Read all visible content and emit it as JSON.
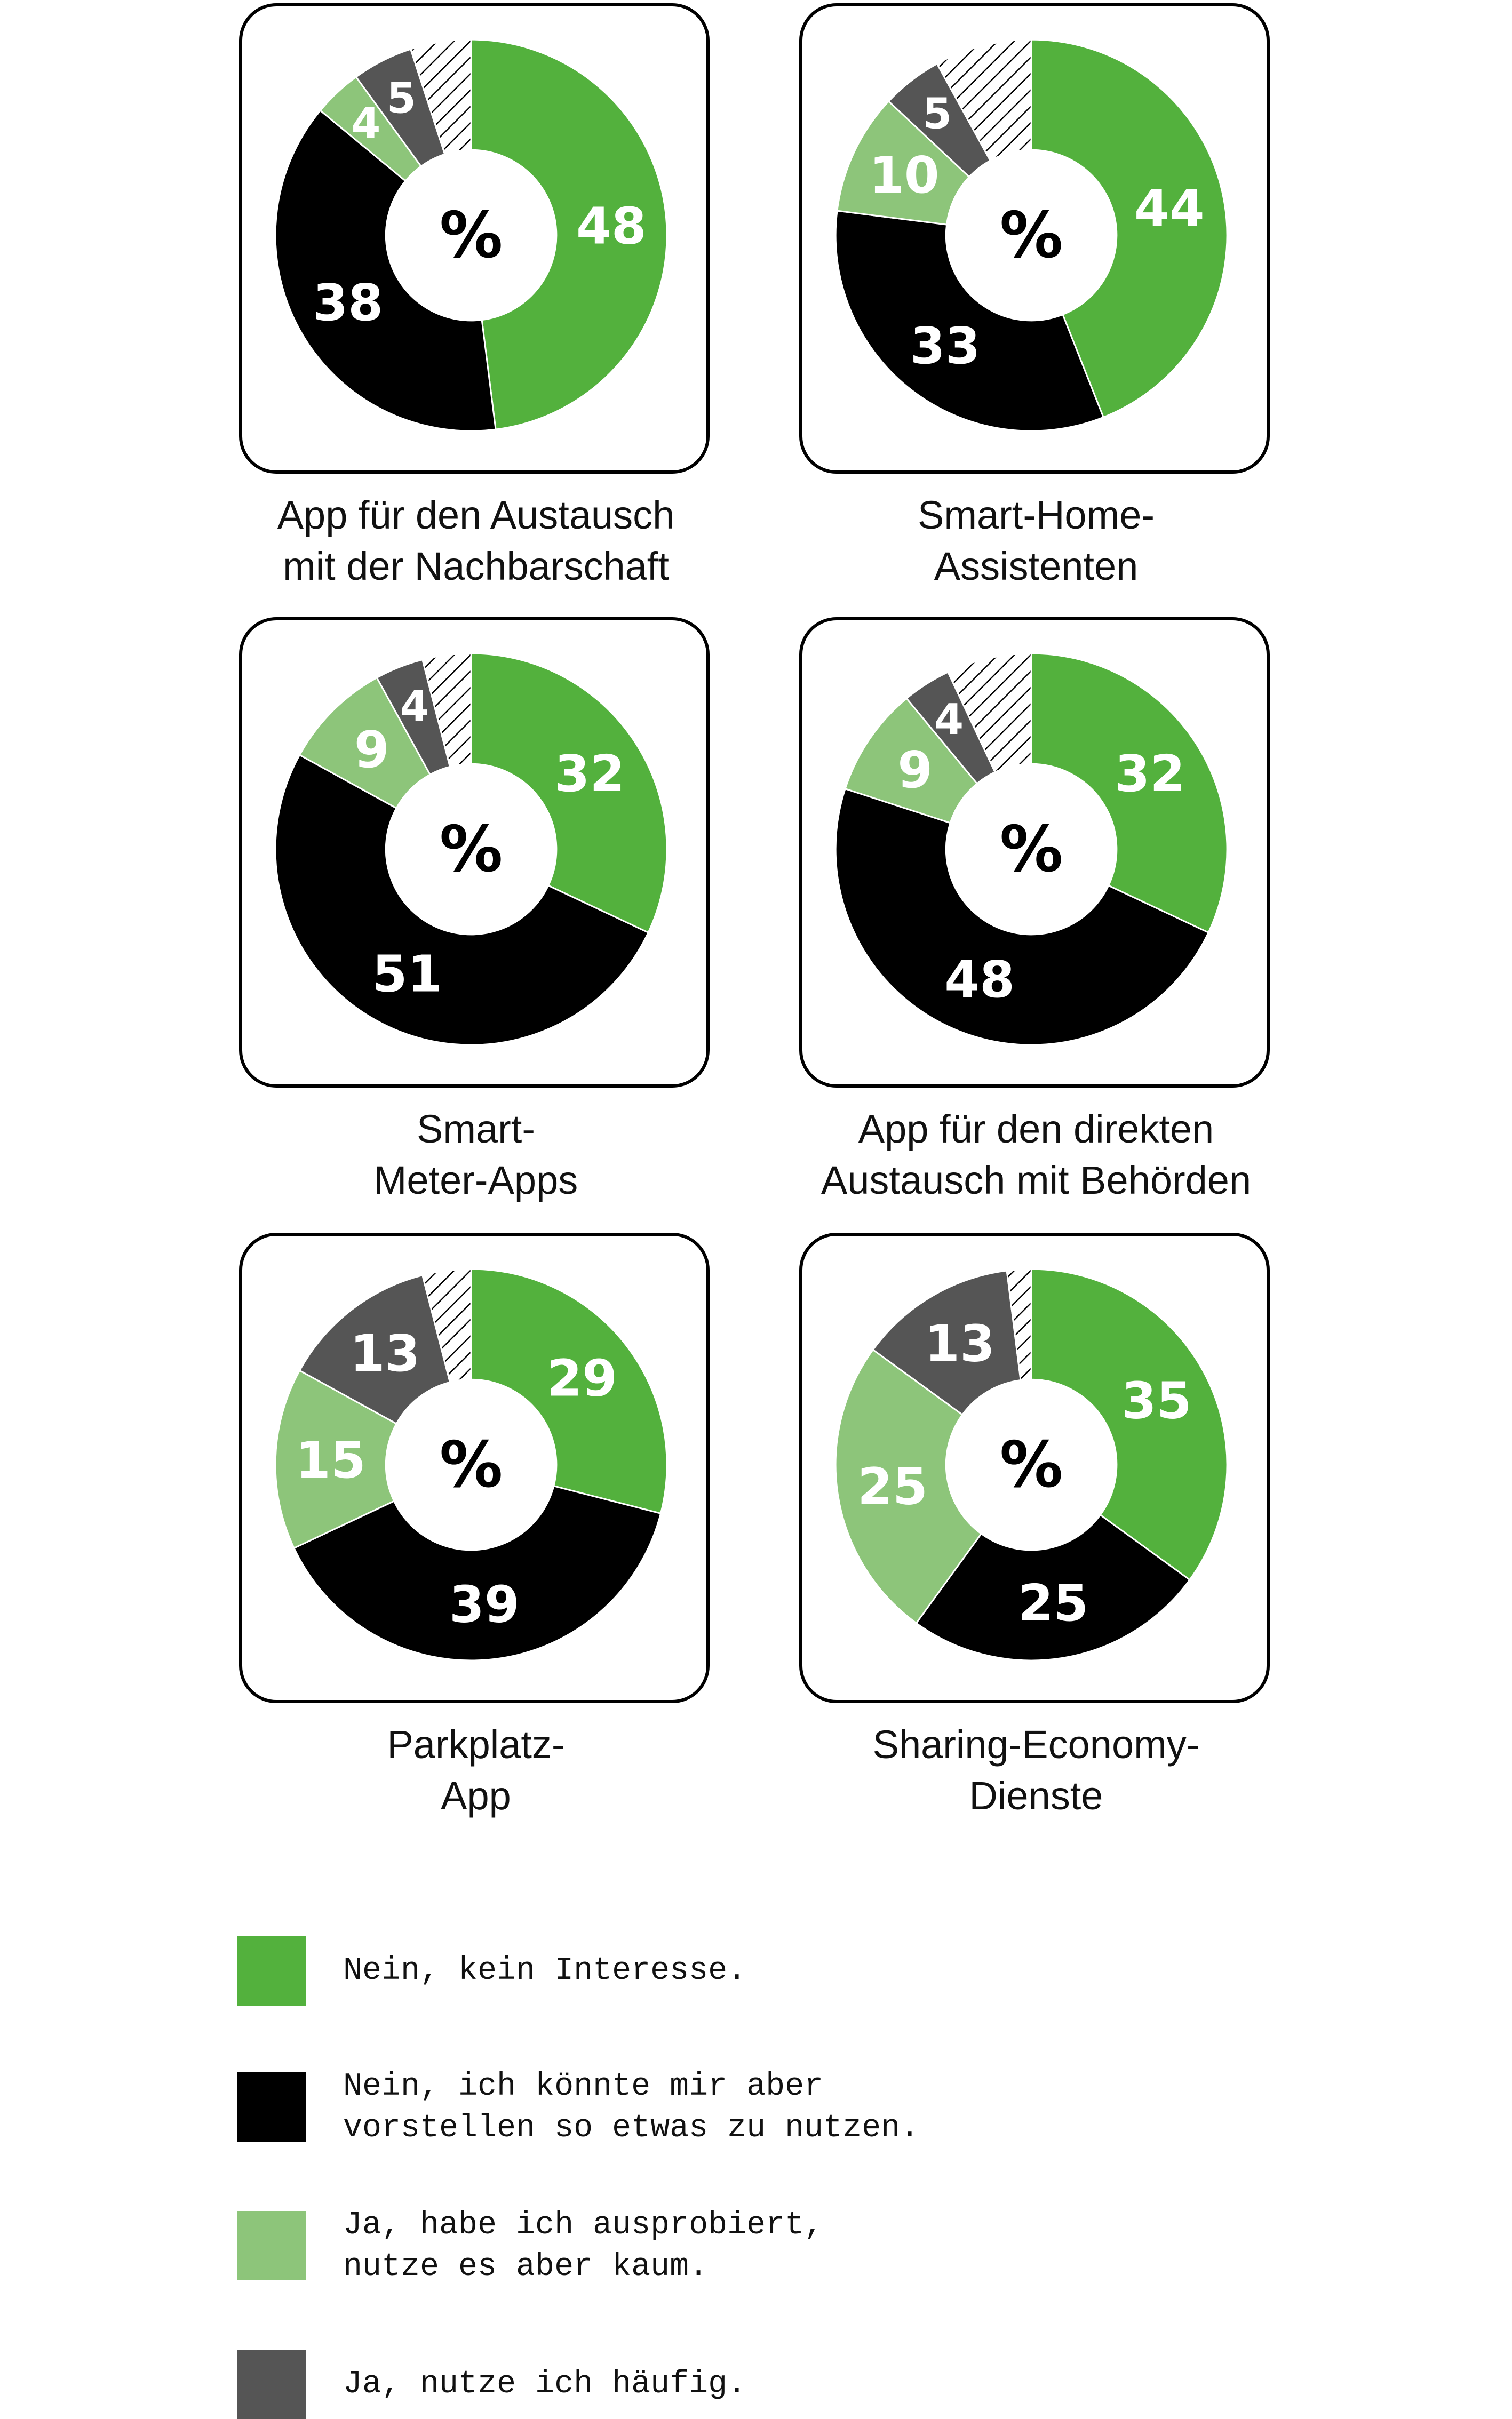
{
  "colors": {
    "nein_kein_interesse": "#53b13d",
    "nein_vorstellbar": "#000000",
    "ja_kaum": "#8dc57a",
    "ja_haeufig": "#555555",
    "hatched": "#000000"
  },
  "center_label": "%",
  "chart_data": [
    {
      "type": "pie",
      "title_lines": [
        "App für den Austausch",
        "mit der Nachbarschaft"
      ],
      "values": [
        48,
        38,
        4,
        5
      ]
    },
    {
      "type": "pie",
      "title_lines": [
        "Smart-Home-",
        "Assistenten"
      ],
      "values": [
        44,
        33,
        10,
        5
      ]
    },
    {
      "type": "pie",
      "title_lines": [
        "Smart-",
        "Meter-Apps"
      ],
      "values": [
        32,
        51,
        9,
        4
      ]
    },
    {
      "type": "pie",
      "title_lines": [
        "App für den direkten",
        "Austausch mit Behörden"
      ],
      "values": [
        32,
        48,
        9,
        4
      ]
    },
    {
      "type": "pie",
      "title_lines": [
        "Parkplatz-",
        "App"
      ],
      "values": [
        29,
        39,
        15,
        13
      ]
    },
    {
      "type": "pie",
      "title_lines": [
        "Sharing-Economy-",
        "Dienste"
      ],
      "values": [
        35,
        25,
        25,
        13
      ]
    }
  ],
  "legend": [
    {
      "lines": [
        "Nein, kein Interesse."
      ],
      "color": "#53b13d"
    },
    {
      "lines": [
        "Nein, ich könnte mir aber",
        "vorstellen so etwas zu nutzen."
      ],
      "color": "#000000"
    },
    {
      "lines": [
        "Ja, habe ich ausprobiert,",
        "nutze es aber kaum."
      ],
      "color": "#8dc57a"
    },
    {
      "lines": [
        "Ja, nutze ich häufig."
      ],
      "color": "#555555"
    }
  ]
}
